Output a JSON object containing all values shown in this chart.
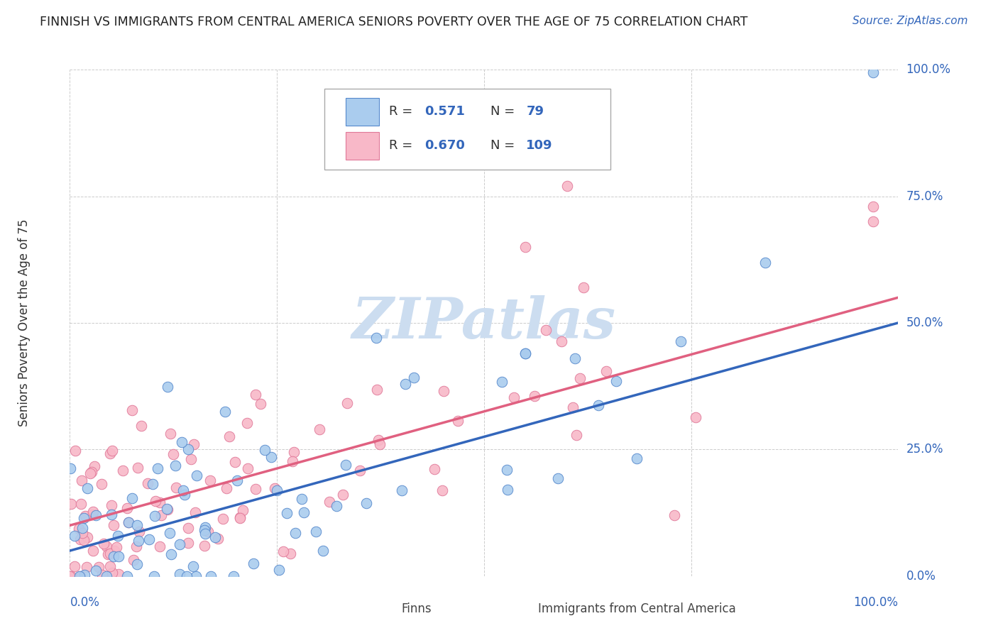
{
  "title": "FINNISH VS IMMIGRANTS FROM CENTRAL AMERICA SENIORS POVERTY OVER THE AGE OF 75 CORRELATION CHART",
  "source": "Source: ZipAtlas.com",
  "ylabel": "Seniors Poverty Over the Age of 75",
  "ytick_labels": [
    "0.0%",
    "25.0%",
    "50.0%",
    "75.0%",
    "100.0%"
  ],
  "xtick_labels": [
    "0.0%",
    "100.0%"
  ],
  "series1_label": "Finns",
  "series2_label": "Immigrants from Central America",
  "series1_color": "#aaccee",
  "series1_edge_color": "#5588cc",
  "series1_line_color": "#3366bb",
  "series2_color": "#f8b8c8",
  "series2_edge_color": "#e07898",
  "series2_line_color": "#e06080",
  "r1": 0.571,
  "n1": 79,
  "r2": 0.67,
  "n2": 109,
  "blue_line_x0": 0.0,
  "blue_line_y0": 0.05,
  "blue_line_x1": 1.0,
  "blue_line_y1": 0.5,
  "pink_line_x0": 0.0,
  "pink_line_y0": 0.1,
  "pink_line_x1": 1.0,
  "pink_line_y1": 0.55,
  "watermark_text": "ZIPatlas",
  "watermark_color": "#ccddf0",
  "background_color": "#ffffff",
  "grid_color": "#cccccc",
  "title_color": "#222222",
  "axis_label_color": "#3366bb",
  "source_color": "#3366bb",
  "xlim": [
    0,
    1
  ],
  "ylim": [
    0,
    1
  ]
}
